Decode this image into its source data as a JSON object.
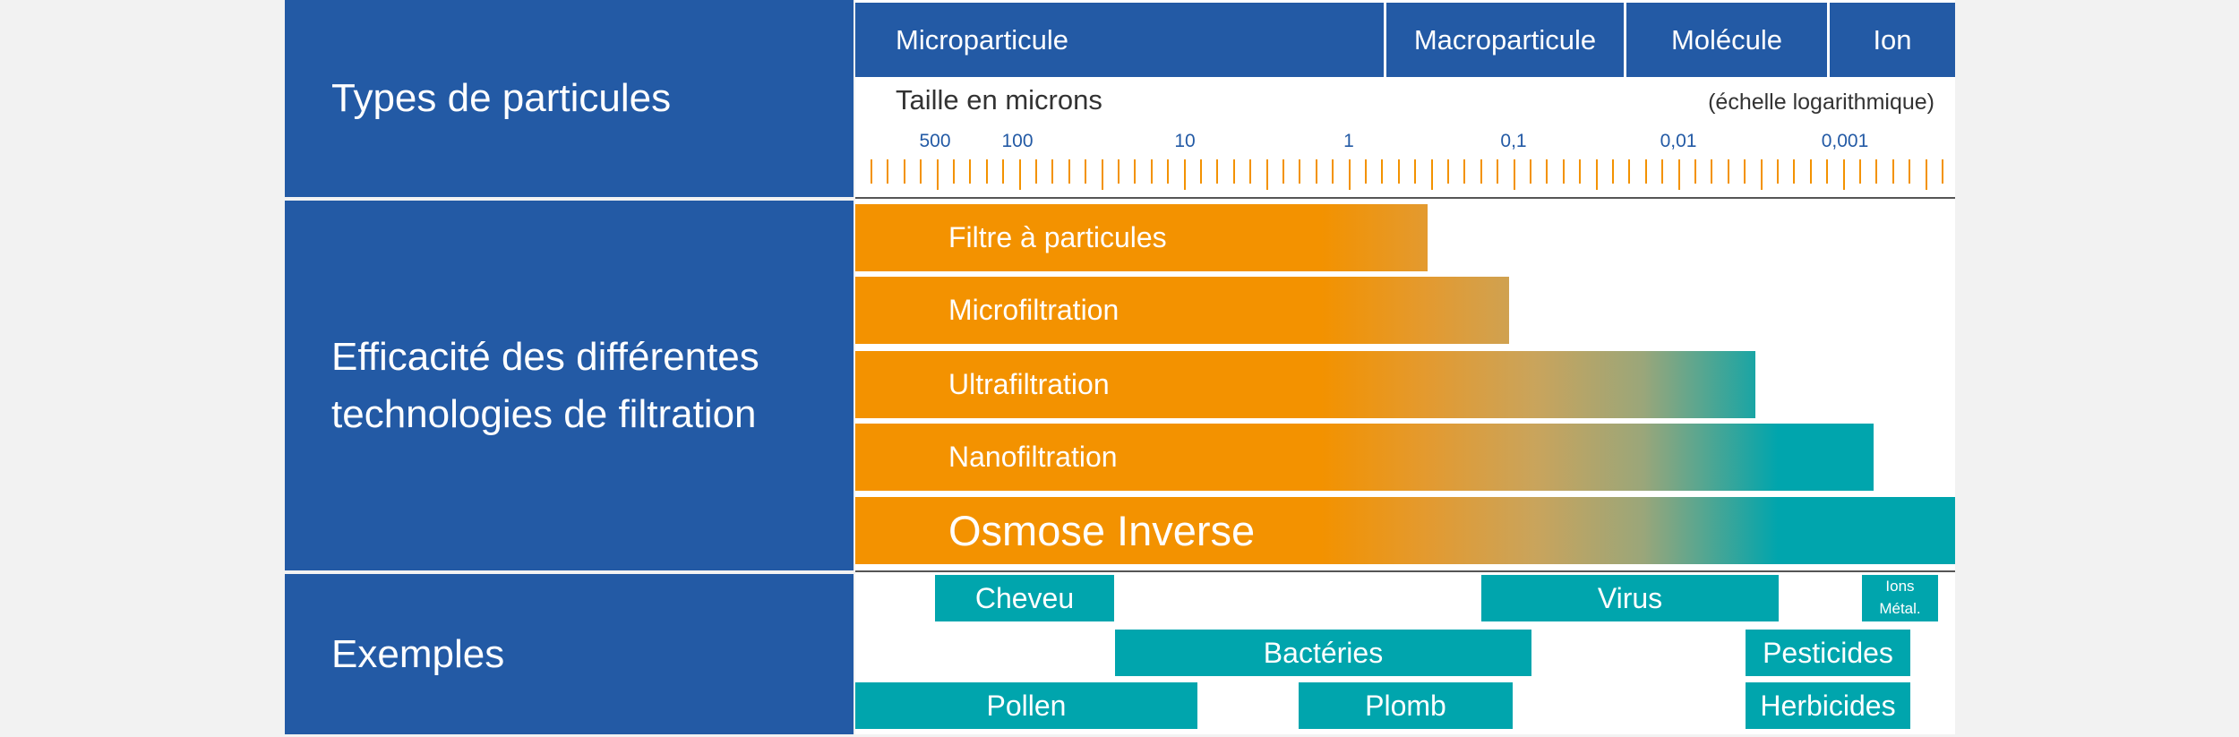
{
  "rows": {
    "types": "Types de particules",
    "efficacy": [
      "Efficacité des différentes",
      "technologies de filtration"
    ],
    "examples": "Exemples"
  },
  "categories": [
    {
      "label": "Microparticule"
    },
    {
      "label": "Macroparticule"
    },
    {
      "label": "Molécule"
    },
    {
      "label": "Ion"
    }
  ],
  "scale": {
    "title": "Taille en microns",
    "note": "(échelle logarithmique)",
    "tick_labels": [
      "500",
      "100",
      "10",
      "1",
      "0,1",
      "0,01",
      "0,001"
    ]
  },
  "technologies": [
    {
      "label": "Filtre à particules",
      "min_micron": 0.5
    },
    {
      "label": "Microfiltration",
      "min_micron": 0.1
    },
    {
      "label": "Ultrafiltration",
      "min_micron": 0.003
    },
    {
      "label": "Nanofiltration",
      "min_micron": 0.0005
    },
    {
      "label": "Osmose Inverse",
      "min_micron": 0.0001
    }
  ],
  "examples": [
    {
      "label": "Cheveu"
    },
    {
      "label": "Virus"
    },
    {
      "label": "Ions Métal."
    },
    {
      "label": "Bactéries"
    },
    {
      "label": "Pesticides"
    },
    {
      "label": "Pollen"
    },
    {
      "label": "Plomb"
    },
    {
      "label": "Herbicides"
    }
  ],
  "colors": {
    "blue": "#235aa5",
    "orange": "#f39200",
    "teal": "#00a5ad"
  }
}
